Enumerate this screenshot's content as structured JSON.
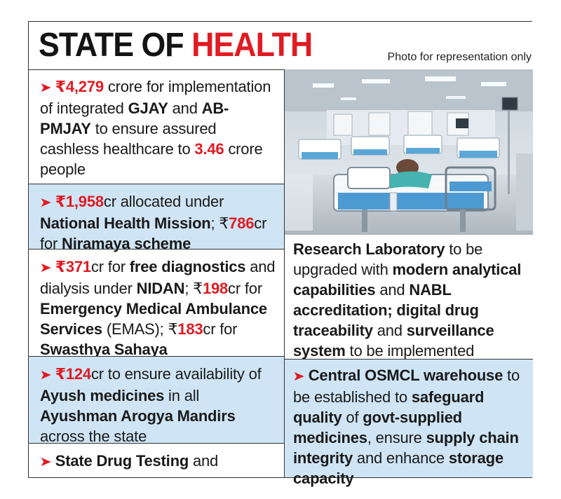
{
  "header": {
    "title_part1": "STATE OF ",
    "title_part2": "HEALTH",
    "photo_credit": "Photo for representation only"
  },
  "left": {
    "b1": {
      "amt": "₹4,279",
      "t1": " crore for implementation of integrated ",
      "s1": "GJAY",
      "t2": " and ",
      "s2": "AB-PMJAY",
      "t3": " to ensure assured cashless healthcare to ",
      "amt2": "3.46",
      "t4": " crore people"
    },
    "b2": {
      "amt": "₹1,958",
      "t1": "cr allocated under ",
      "s1": "National Health Mission",
      "t2": "; ₹",
      "amt2": "786",
      "t3": "cr for ",
      "s2": "Niramaya scheme"
    },
    "b3": {
      "amt": "₹371",
      "t1": "cr for ",
      "s1": "free diagnostics",
      "t2": " and dialysis under ",
      "s2": "NIDAN",
      "t3": "; ₹",
      "amt2": "198",
      "t4": "cr for ",
      "s3": "Emergency Medical Ambulance Services",
      "t5": " (EMAS); ₹",
      "amt3": "183",
      "t6": "cr for ",
      "s4": "Swasthya Sahaya"
    },
    "b4": {
      "amt": "₹124",
      "t1": "cr to ensure availability of ",
      "s1": "Ayush medicines",
      "t2": " in all ",
      "s2": "Ayushman Arogya Mandirs",
      "t3": " across the state"
    },
    "b5": {
      "s1": "State Drug Testing",
      "t1": " and"
    }
  },
  "right": {
    "b1": {
      "s1": "Research Laboratory",
      "t1": " to be upgraded with ",
      "s2": "modern analytical capabilities",
      "t2": " and ",
      "s3": "NABL accreditation; digital drug traceability",
      "t3": " and ",
      "s4": "surveillance system",
      "t4": " to be implemented"
    },
    "b2": {
      "s1": "Central OSMCL warehouse",
      "t1": " to be established to ",
      "s2": "safeguard quality",
      "t2": " of ",
      "s3": "govt-supplied medicines",
      "t3": ", ensure ",
      "s4": "supply chain integrity",
      "t4": " and enhance ",
      "s5": "storage capacity"
    }
  },
  "colors": {
    "accent": "#e11b22",
    "highlight": "#cfe5f6",
    "text": "#1a1a1a"
  },
  "icons": {
    "bullet": "red-arrow-icon"
  },
  "photo": {
    "subject": "hospital-ward-beds"
  }
}
